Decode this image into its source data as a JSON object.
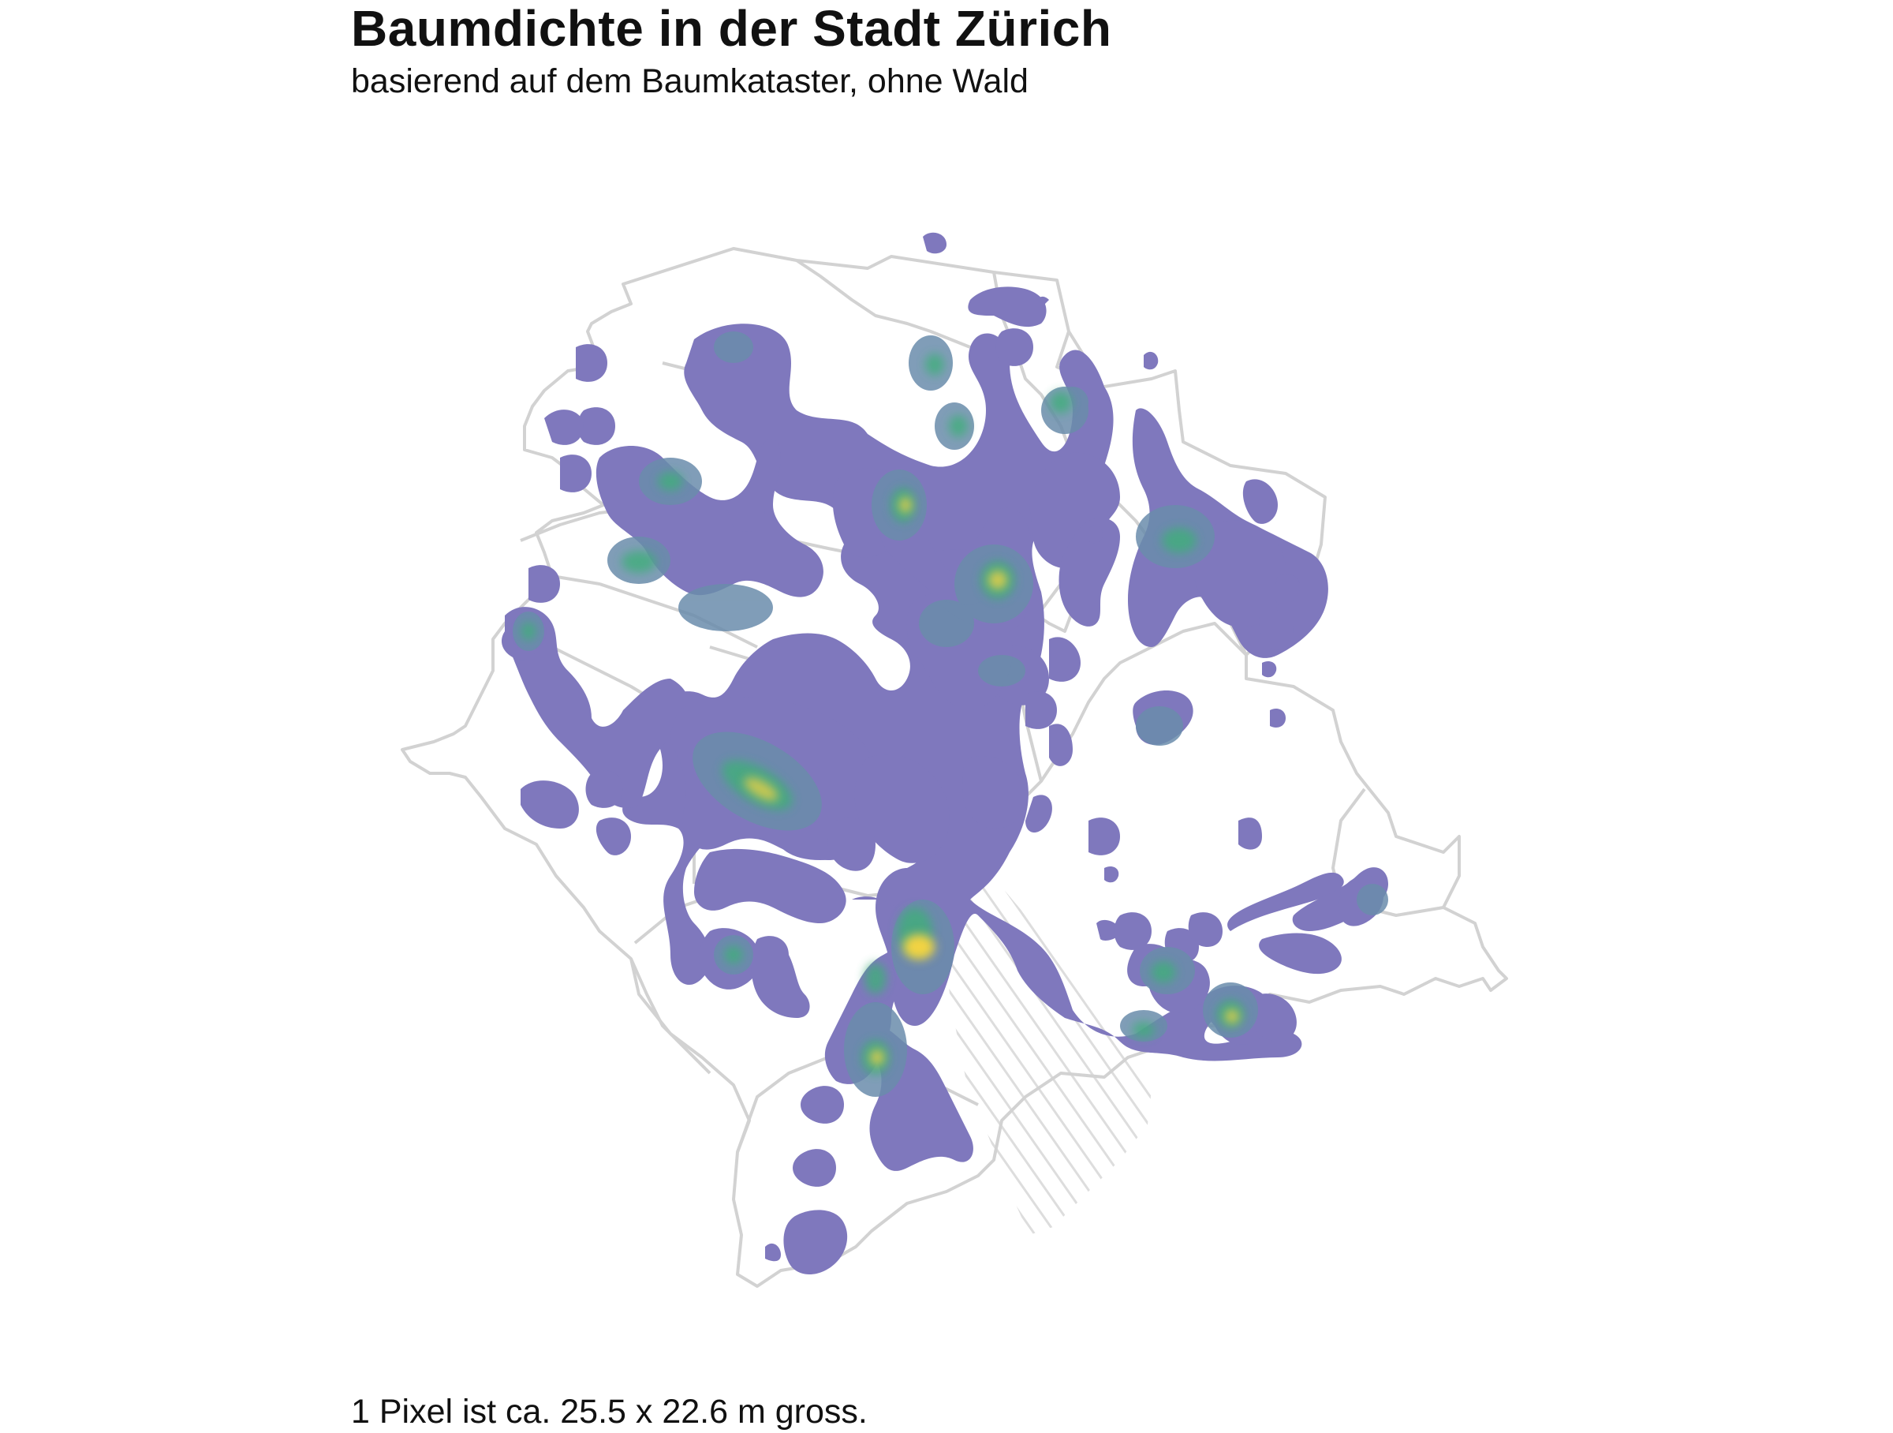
{
  "title": "Baumdichte in der Stadt Zürich",
  "subtitle": "basierend auf dem Baumkataster, ohne Wald",
  "caption": "1 Pixel ist ca. 25.5 x 22.6 m gross.",
  "colors": {
    "density_low": "#7f78bd",
    "density_mid": "#5f9c98",
    "density_high": "#3fae7a",
    "density_peak": "#f2d342",
    "boundary": "#d2d2d2",
    "lake_hatch": "#dddddd",
    "background": "#ffffff"
  }
}
